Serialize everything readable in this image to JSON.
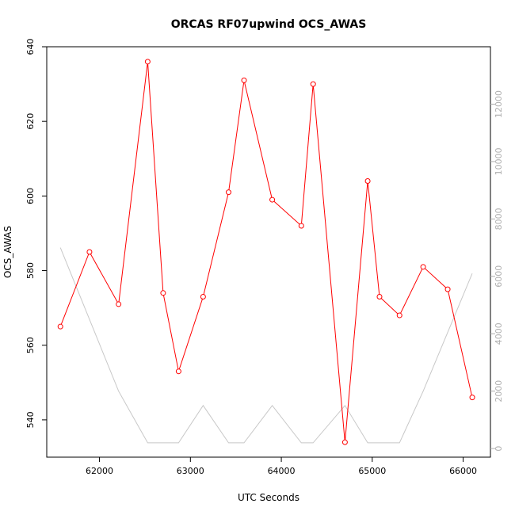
{
  "chart_data": {
    "type": "line",
    "title": "ORCAS RF07upwind OCS_AWAS",
    "xlabel": "UTC Seconds",
    "ylabel": "OCS_AWAS",
    "xlim": [
      61420,
      66300
    ],
    "ylim": [
      530,
      640
    ],
    "ylim_right": [
      -300,
      14000
    ],
    "x_ticks": [
      62000,
      63000,
      64000,
      65000,
      66000
    ],
    "y_ticks": [
      540,
      560,
      580,
      600,
      620,
      640
    ],
    "y_ticks_right": [
      0,
      2000,
      4000,
      6000,
      8000,
      10000,
      12000
    ],
    "grid": false,
    "series": [
      {
        "axis": "left",
        "color": "#ff0000",
        "markers": "open-circle",
        "x": [
          61570,
          61890,
          62210,
          62530,
          62700,
          62870,
          63140,
          63420,
          63590,
          63900,
          64220,
          64350,
          64700,
          64950,
          65080,
          65300,
          65560,
          65830,
          66100
        ],
        "y": [
          565,
          585,
          571,
          636,
          574,
          553,
          573,
          601,
          631,
          599,
          592,
          630,
          534,
          604,
          573,
          568,
          581,
          575,
          546
        ]
      },
      {
        "axis": "right",
        "color": "#c8c8c8",
        "markers": "none",
        "x": [
          61570,
          62210,
          62530,
          62870,
          63140,
          63420,
          63590,
          63900,
          64220,
          64350,
          64700,
          64950,
          65300,
          65560,
          66100
        ],
        "y": [
          7000,
          2000,
          200,
          200,
          1500,
          200,
          200,
          1500,
          200,
          200,
          1500,
          200,
          200,
          2000,
          6100
        ]
      }
    ]
  }
}
